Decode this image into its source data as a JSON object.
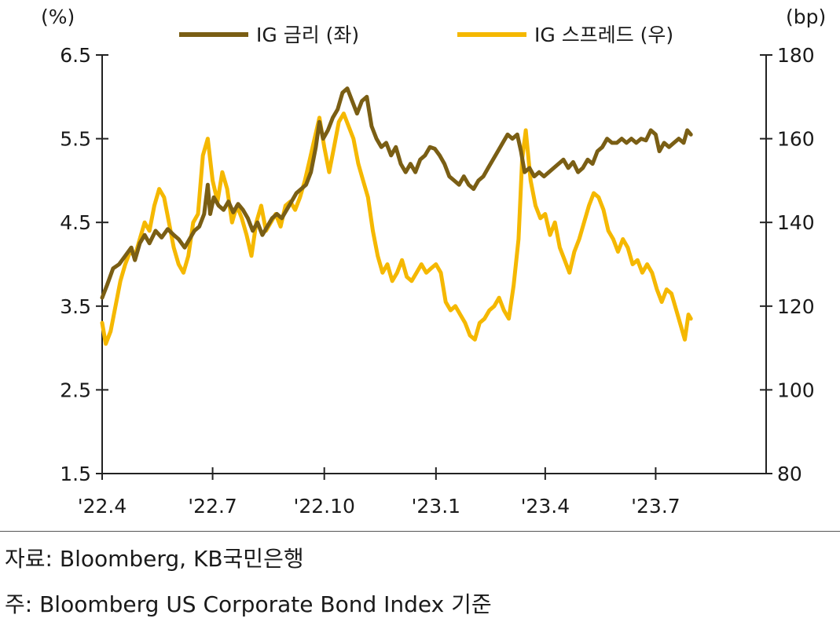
{
  "chart_data": {
    "type": "line",
    "legend": {
      "placement": "top-center",
      "entries": [
        "IG 금리 (좌)",
        "IG 스프레드 (우)"
      ]
    },
    "y_left": {
      "unit": "(%)",
      "range": [
        1.5,
        6.5
      ],
      "ticks": [
        "1.5",
        "2.5",
        "3.5",
        "4.5",
        "5.5",
        "6.5"
      ],
      "tick_values": [
        1.5,
        2.5,
        3.5,
        4.5,
        5.5,
        6.5
      ]
    },
    "y_right": {
      "unit": "(bp)",
      "range": [
        80,
        180
      ],
      "ticks": [
        "80",
        "100",
        "120",
        "140",
        "160",
        "180"
      ],
      "tick_values": [
        80,
        100,
        120,
        140,
        160,
        180
      ]
    },
    "x_axis": {
      "range": [
        "2022-04-01",
        "2023-09-30"
      ],
      "ticks": [
        {
          "label": "'22.4",
          "date": "2022-04-01"
        },
        {
          "label": "'22.7",
          "date": "2022-07-01"
        },
        {
          "label": "'22.10",
          "date": "2022-10-01"
        },
        {
          "label": "'23.1",
          "date": "2023-01-01"
        },
        {
          "label": "'23.4",
          "date": "2023-04-01"
        },
        {
          "label": "'23.7",
          "date": "2023-07-01"
        }
      ]
    },
    "series": [
      {
        "name": "IG 금리 (좌)",
        "axis": "left",
        "color": "#7a5e14",
        "points": [
          [
            "2022-04-01",
            3.6
          ],
          [
            "2022-04-05",
            3.75
          ],
          [
            "2022-04-10",
            3.95
          ],
          [
            "2022-04-15",
            4.0
          ],
          [
            "2022-04-20",
            4.1
          ],
          [
            "2022-04-25",
            4.2
          ],
          [
            "2022-04-28",
            4.05
          ],
          [
            "2022-05-02",
            4.25
          ],
          [
            "2022-05-06",
            4.35
          ],
          [
            "2022-05-10",
            4.25
          ],
          [
            "2022-05-15",
            4.4
          ],
          [
            "2022-05-20",
            4.32
          ],
          [
            "2022-05-25",
            4.42
          ],
          [
            "2022-05-30",
            4.35
          ],
          [
            "2022-06-03",
            4.3
          ],
          [
            "2022-06-08",
            4.2
          ],
          [
            "2022-06-12",
            4.3
          ],
          [
            "2022-06-16",
            4.4
          ],
          [
            "2022-06-20",
            4.45
          ],
          [
            "2022-06-24",
            4.6
          ],
          [
            "2022-06-27",
            4.95
          ],
          [
            "2022-06-29",
            4.6
          ],
          [
            "2022-07-02",
            4.8
          ],
          [
            "2022-07-06",
            4.7
          ],
          [
            "2022-07-10",
            4.65
          ],
          [
            "2022-07-14",
            4.75
          ],
          [
            "2022-07-18",
            4.62
          ],
          [
            "2022-07-22",
            4.72
          ],
          [
            "2022-07-26",
            4.65
          ],
          [
            "2022-07-30",
            4.55
          ],
          [
            "2022-08-03",
            4.4
          ],
          [
            "2022-08-07",
            4.5
          ],
          [
            "2022-08-11",
            4.35
          ],
          [
            "2022-08-15",
            4.45
          ],
          [
            "2022-08-19",
            4.55
          ],
          [
            "2022-08-23",
            4.6
          ],
          [
            "2022-08-27",
            4.55
          ],
          [
            "2022-08-31",
            4.65
          ],
          [
            "2022-09-04",
            4.75
          ],
          [
            "2022-09-08",
            4.85
          ],
          [
            "2022-09-12",
            4.9
          ],
          [
            "2022-09-16",
            4.95
          ],
          [
            "2022-09-20",
            5.1
          ],
          [
            "2022-09-24",
            5.4
          ],
          [
            "2022-09-27",
            5.7
          ],
          [
            "2022-09-30",
            5.5
          ],
          [
            "2022-10-04",
            5.6
          ],
          [
            "2022-10-08",
            5.75
          ],
          [
            "2022-10-12",
            5.85
          ],
          [
            "2022-10-16",
            6.05
          ],
          [
            "2022-10-20",
            6.1
          ],
          [
            "2022-10-24",
            5.95
          ],
          [
            "2022-10-28",
            5.8
          ],
          [
            "2022-11-01",
            5.95
          ],
          [
            "2022-11-05",
            6.0
          ],
          [
            "2022-11-09",
            5.65
          ],
          [
            "2022-11-13",
            5.5
          ],
          [
            "2022-11-17",
            5.4
          ],
          [
            "2022-11-21",
            5.45
          ],
          [
            "2022-11-25",
            5.3
          ],
          [
            "2022-11-29",
            5.4
          ],
          [
            "2022-12-03",
            5.2
          ],
          [
            "2022-12-07",
            5.1
          ],
          [
            "2022-12-11",
            5.2
          ],
          [
            "2022-12-15",
            5.1
          ],
          [
            "2022-12-19",
            5.25
          ],
          [
            "2022-12-23",
            5.3
          ],
          [
            "2022-12-27",
            5.4
          ],
          [
            "2022-12-31",
            5.38
          ],
          [
            "2023-01-04",
            5.3
          ],
          [
            "2023-01-08",
            5.2
          ],
          [
            "2023-01-12",
            5.05
          ],
          [
            "2023-01-16",
            5.0
          ],
          [
            "2023-01-20",
            4.95
          ],
          [
            "2023-01-24",
            5.05
          ],
          [
            "2023-01-28",
            4.95
          ],
          [
            "2023-02-01",
            4.9
          ],
          [
            "2023-02-05",
            5.0
          ],
          [
            "2023-02-09",
            5.05
          ],
          [
            "2023-02-13",
            5.15
          ],
          [
            "2023-02-17",
            5.25
          ],
          [
            "2023-02-21",
            5.35
          ],
          [
            "2023-02-25",
            5.45
          ],
          [
            "2023-03-01",
            5.55
          ],
          [
            "2023-03-05",
            5.5
          ],
          [
            "2023-03-09",
            5.55
          ],
          [
            "2023-03-12",
            5.35
          ],
          [
            "2023-03-15",
            5.1
          ],
          [
            "2023-03-19",
            5.15
          ],
          [
            "2023-03-23",
            5.05
          ],
          [
            "2023-03-27",
            5.1
          ],
          [
            "2023-03-31",
            5.05
          ],
          [
            "2023-04-04",
            5.1
          ],
          [
            "2023-04-08",
            5.15
          ],
          [
            "2023-04-12",
            5.2
          ],
          [
            "2023-04-16",
            5.25
          ],
          [
            "2023-04-20",
            5.15
          ],
          [
            "2023-04-24",
            5.22
          ],
          [
            "2023-04-28",
            5.1
          ],
          [
            "2023-05-02",
            5.15
          ],
          [
            "2023-05-06",
            5.25
          ],
          [
            "2023-05-10",
            5.2
          ],
          [
            "2023-05-14",
            5.35
          ],
          [
            "2023-05-18",
            5.4
          ],
          [
            "2023-05-22",
            5.5
          ],
          [
            "2023-05-26",
            5.45
          ],
          [
            "2023-05-30",
            5.45
          ],
          [
            "2023-06-03",
            5.5
          ],
          [
            "2023-06-07",
            5.45
          ],
          [
            "2023-06-11",
            5.5
          ],
          [
            "2023-06-15",
            5.45
          ],
          [
            "2023-06-19",
            5.5
          ],
          [
            "2023-06-23",
            5.48
          ],
          [
            "2023-06-27",
            5.6
          ],
          [
            "2023-07-01",
            5.55
          ],
          [
            "2023-07-04",
            5.35
          ],
          [
            "2023-07-08",
            5.45
          ],
          [
            "2023-07-12",
            5.4
          ],
          [
            "2023-07-16",
            5.45
          ],
          [
            "2023-07-20",
            5.5
          ],
          [
            "2023-07-24",
            5.45
          ],
          [
            "2023-07-27",
            5.6
          ],
          [
            "2023-07-30",
            5.55
          ]
        ]
      },
      {
        "name": "IG 스프레드 (우)",
        "axis": "right",
        "color": "#f5b800",
        "points": [
          [
            "2022-04-01",
            116
          ],
          [
            "2022-04-04",
            111
          ],
          [
            "2022-04-08",
            114
          ],
          [
            "2022-04-12",
            120
          ],
          [
            "2022-04-16",
            126
          ],
          [
            "2022-04-20",
            130
          ],
          [
            "2022-04-24",
            133
          ],
          [
            "2022-04-28",
            132
          ],
          [
            "2022-05-02",
            136
          ],
          [
            "2022-05-06",
            140
          ],
          [
            "2022-05-10",
            138
          ],
          [
            "2022-05-14",
            144
          ],
          [
            "2022-05-18",
            148
          ],
          [
            "2022-05-22",
            146
          ],
          [
            "2022-05-26",
            140
          ],
          [
            "2022-05-30",
            134
          ],
          [
            "2022-06-03",
            130
          ],
          [
            "2022-06-07",
            128
          ],
          [
            "2022-06-11",
            132
          ],
          [
            "2022-06-15",
            140
          ],
          [
            "2022-06-19",
            142
          ],
          [
            "2022-06-23",
            156
          ],
          [
            "2022-06-27",
            160
          ],
          [
            "2022-07-01",
            150
          ],
          [
            "2022-07-05",
            145
          ],
          [
            "2022-07-09",
            152
          ],
          [
            "2022-07-13",
            148
          ],
          [
            "2022-07-17",
            140
          ],
          [
            "2022-07-21",
            144
          ],
          [
            "2022-07-25",
            141
          ],
          [
            "2022-07-29",
            137
          ],
          [
            "2022-08-02",
            132
          ],
          [
            "2022-08-06",
            140
          ],
          [
            "2022-08-10",
            144
          ],
          [
            "2022-08-14",
            138
          ],
          [
            "2022-08-18",
            140
          ],
          [
            "2022-08-22",
            142
          ],
          [
            "2022-08-26",
            139
          ],
          [
            "2022-08-30",
            144
          ],
          [
            "2022-09-03",
            145
          ],
          [
            "2022-09-07",
            143
          ],
          [
            "2022-09-11",
            146
          ],
          [
            "2022-09-15",
            150
          ],
          [
            "2022-09-19",
            155
          ],
          [
            "2022-09-23",
            160
          ],
          [
            "2022-09-27",
            165
          ],
          [
            "2022-10-01",
            158
          ],
          [
            "2022-10-05",
            152
          ],
          [
            "2022-10-09",
            158
          ],
          [
            "2022-10-13",
            164
          ],
          [
            "2022-10-17",
            166
          ],
          [
            "2022-10-21",
            163
          ],
          [
            "2022-10-25",
            160
          ],
          [
            "2022-10-29",
            154
          ],
          [
            "2022-11-02",
            150
          ],
          [
            "2022-11-06",
            146
          ],
          [
            "2022-11-10",
            138
          ],
          [
            "2022-11-14",
            132
          ],
          [
            "2022-11-18",
            128
          ],
          [
            "2022-11-22",
            130
          ],
          [
            "2022-11-26",
            126
          ],
          [
            "2022-11-30",
            128
          ],
          [
            "2022-12-04",
            131
          ],
          [
            "2022-12-08",
            127
          ],
          [
            "2022-12-12",
            126
          ],
          [
            "2022-12-16",
            128
          ],
          [
            "2022-12-20",
            130
          ],
          [
            "2022-12-24",
            128
          ],
          [
            "2022-12-28",
            129
          ],
          [
            "2023-01-01",
            130
          ],
          [
            "2023-01-05",
            128
          ],
          [
            "2023-01-09",
            121
          ],
          [
            "2023-01-13",
            119
          ],
          [
            "2023-01-17",
            120
          ],
          [
            "2023-01-21",
            118
          ],
          [
            "2023-01-25",
            116
          ],
          [
            "2023-01-29",
            113
          ],
          [
            "2023-02-02",
            112
          ],
          [
            "2023-02-06",
            116
          ],
          [
            "2023-02-10",
            117
          ],
          [
            "2023-02-14",
            119
          ],
          [
            "2023-02-18",
            120
          ],
          [
            "2023-02-22",
            122
          ],
          [
            "2023-02-26",
            119
          ],
          [
            "2023-03-02",
            117
          ],
          [
            "2023-03-06",
            125
          ],
          [
            "2023-03-10",
            136
          ],
          [
            "2023-03-13",
            155
          ],
          [
            "2023-03-16",
            162
          ],
          [
            "2023-03-20",
            150
          ],
          [
            "2023-03-24",
            144
          ],
          [
            "2023-03-28",
            141
          ],
          [
            "2023-04-01",
            142
          ],
          [
            "2023-04-05",
            137
          ],
          [
            "2023-04-09",
            140
          ],
          [
            "2023-04-13",
            134
          ],
          [
            "2023-04-17",
            131
          ],
          [
            "2023-04-21",
            128
          ],
          [
            "2023-04-25",
            133
          ],
          [
            "2023-04-29",
            136
          ],
          [
            "2023-05-03",
            140
          ],
          [
            "2023-05-07",
            144
          ],
          [
            "2023-05-11",
            147
          ],
          [
            "2023-05-15",
            146
          ],
          [
            "2023-05-19",
            143
          ],
          [
            "2023-05-23",
            138
          ],
          [
            "2023-05-27",
            136
          ],
          [
            "2023-05-31",
            133
          ],
          [
            "2023-06-04",
            136
          ],
          [
            "2023-06-08",
            134
          ],
          [
            "2023-06-12",
            130
          ],
          [
            "2023-06-16",
            131
          ],
          [
            "2023-06-20",
            128
          ],
          [
            "2023-06-24",
            130
          ],
          [
            "2023-06-28",
            128
          ],
          [
            "2023-07-02",
            124
          ],
          [
            "2023-07-06",
            121
          ],
          [
            "2023-07-10",
            124
          ],
          [
            "2023-07-14",
            123
          ],
          [
            "2023-07-18",
            119
          ],
          [
            "2023-07-22",
            115
          ],
          [
            "2023-07-25",
            112
          ],
          [
            "2023-07-28",
            118
          ],
          [
            "2023-07-30",
            117
          ]
        ]
      }
    ],
    "grid": false
  },
  "footer": {
    "source": "자료: Bloomberg, KB국민은행",
    "note": "주: Bloomberg US Corporate Bond Index 기준"
  }
}
